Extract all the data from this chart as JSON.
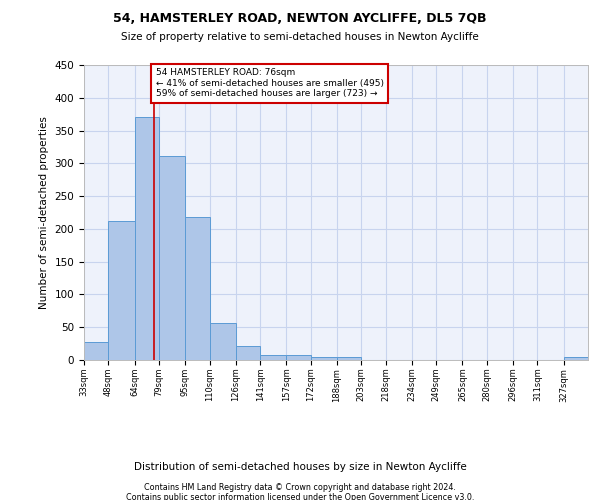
{
  "title": "54, HAMSTERLEY ROAD, NEWTON AYCLIFFE, DL5 7QB",
  "subtitle": "Size of property relative to semi-detached houses in Newton Aycliffe",
  "xlabel": "Distribution of semi-detached houses by size in Newton Aycliffe",
  "ylabel": "Number of semi-detached properties",
  "footnote1": "Contains HM Land Registry data © Crown copyright and database right 2024.",
  "footnote2": "Contains public sector information licensed under the Open Government Licence v3.0.",
  "annotation_title": "54 HAMSTERLEY ROAD: 76sqm",
  "annotation_line1": "← 41% of semi-detached houses are smaller (495)",
  "annotation_line2": "59% of semi-detached houses are larger (723) →",
  "property_size": 76,
  "bin_edges": [
    33,
    48,
    64,
    79,
    95,
    110,
    126,
    141,
    157,
    172,
    188,
    203,
    218,
    234,
    249,
    265,
    280,
    296,
    311,
    327,
    342
  ],
  "bar_heights": [
    28,
    212,
    370,
    311,
    218,
    57,
    22,
    8,
    8,
    5,
    5,
    0,
    0,
    0,
    0,
    0,
    0,
    0,
    0,
    5
  ],
  "bar_color": "#aec6e8",
  "bar_edge_color": "#5b9bd5",
  "vline_color": "#cc0000",
  "vline_x": 76,
  "annotation_box_color": "#cc0000",
  "background_color": "#eef2fb",
  "grid_color": "#c8d4ee",
  "ylim": [
    0,
    450
  ],
  "yticks": [
    0,
    50,
    100,
    150,
    200,
    250,
    300,
    350,
    400,
    450
  ]
}
